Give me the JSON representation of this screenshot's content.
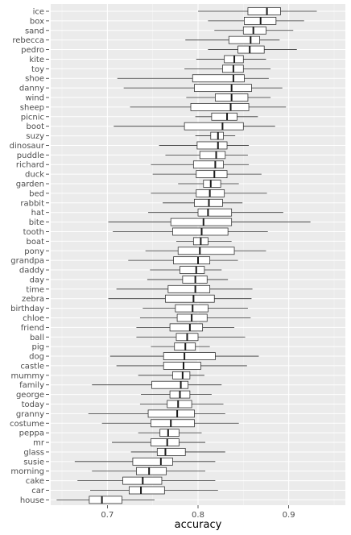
{
  "chart_data": {
    "type": "boxplot",
    "title": "",
    "xlabel": "accuracy",
    "ylabel": "",
    "xlim": [
      0.6375,
      0.9625
    ],
    "xticks": [
      0.7,
      0.8,
      0.9
    ],
    "xtick_labels": [
      "0.7",
      "0.8",
      "0.9"
    ],
    "grid": true,
    "categories": [
      "ice",
      "box",
      "sand",
      "rebecca",
      "pedro",
      "kite",
      "toy",
      "shoe",
      "danny",
      "wind",
      "sheep",
      "picnic",
      "boot",
      "suzy",
      "dinosaur",
      "puddle",
      "richard",
      "duck",
      "garden",
      "bed",
      "rabbit",
      "hat",
      "bite",
      "tooth",
      "boat",
      "pony",
      "grandpa",
      "daddy",
      "day",
      "time",
      "zebra",
      "birthday",
      "chloe",
      "friend",
      "ball",
      "pig",
      "dog",
      "castle",
      "mummy",
      "family",
      "george",
      "today",
      "granny",
      "costume",
      "peppa",
      "mr",
      "glass",
      "susie",
      "morning",
      "cake",
      "car",
      "house"
    ],
    "boxes": [
      {
        "min": 0.8,
        "q1": 0.855,
        "median": 0.876,
        "q3": 0.891,
        "max": 0.931
      },
      {
        "min": 0.811,
        "q1": 0.851,
        "median": 0.869,
        "q3": 0.886,
        "max": 0.917
      },
      {
        "min": 0.818,
        "q1": 0.85,
        "median": 0.861,
        "q3": 0.875,
        "max": 0.905
      },
      {
        "min": 0.786,
        "q1": 0.834,
        "median": 0.858,
        "q3": 0.868,
        "max": 0.89
      },
      {
        "min": 0.811,
        "q1": 0.844,
        "median": 0.857,
        "q3": 0.873,
        "max": 0.909
      },
      {
        "min": 0.798,
        "q1": 0.829,
        "median": 0.84,
        "q3": 0.85,
        "max": 0.875
      },
      {
        "min": 0.785,
        "q1": 0.827,
        "median": 0.839,
        "q3": 0.85,
        "max": 0.88
      },
      {
        "min": 0.711,
        "q1": 0.794,
        "median": 0.839,
        "q3": 0.851,
        "max": 0.878
      },
      {
        "min": 0.718,
        "q1": 0.796,
        "median": 0.837,
        "q3": 0.859,
        "max": 0.893
      },
      {
        "min": 0.787,
        "q1": 0.819,
        "median": 0.837,
        "q3": 0.855,
        "max": 0.88
      },
      {
        "min": 0.725,
        "q1": 0.792,
        "median": 0.836,
        "q3": 0.856,
        "max": 0.897
      },
      {
        "min": 0.797,
        "q1": 0.815,
        "median": 0.832,
        "q3": 0.843,
        "max": 0.866
      },
      {
        "min": 0.707,
        "q1": 0.785,
        "median": 0.827,
        "q3": 0.85,
        "max": 0.885
      },
      {
        "min": 0.797,
        "q1": 0.814,
        "median": 0.822,
        "q3": 0.828,
        "max": 0.841
      },
      {
        "min": 0.757,
        "q1": 0.799,
        "median": 0.822,
        "q3": 0.832,
        "max": 0.856
      },
      {
        "min": 0.764,
        "q1": 0.802,
        "median": 0.82,
        "q3": 0.83,
        "max": 0.855
      },
      {
        "min": 0.748,
        "q1": 0.795,
        "median": 0.819,
        "q3": 0.828,
        "max": 0.856
      },
      {
        "min": 0.75,
        "q1": 0.798,
        "median": 0.818,
        "q3": 0.832,
        "max": 0.87
      },
      {
        "min": 0.778,
        "q1": 0.806,
        "median": 0.814,
        "q3": 0.825,
        "max": 0.845
      },
      {
        "min": 0.748,
        "q1": 0.798,
        "median": 0.813,
        "q3": 0.829,
        "max": 0.876
      },
      {
        "min": 0.761,
        "q1": 0.796,
        "median": 0.812,
        "q3": 0.827,
        "max": 0.849
      },
      {
        "min": 0.745,
        "q1": 0.8,
        "median": 0.811,
        "q3": 0.837,
        "max": 0.894
      },
      {
        "min": 0.701,
        "q1": 0.77,
        "median": 0.806,
        "q3": 0.837,
        "max": 0.924
      },
      {
        "min": 0.706,
        "q1": 0.772,
        "median": 0.804,
        "q3": 0.833,
        "max": 0.877
      },
      {
        "min": 0.776,
        "q1": 0.795,
        "median": 0.803,
        "q3": 0.811,
        "max": 0.837
      },
      {
        "min": 0.742,
        "q1": 0.778,
        "median": 0.802,
        "q3": 0.84,
        "max": 0.875
      },
      {
        "min": 0.723,
        "q1": 0.773,
        "median": 0.8,
        "q3": 0.813,
        "max": 0.844
      },
      {
        "min": 0.747,
        "q1": 0.78,
        "median": 0.798,
        "q3": 0.807,
        "max": 0.826
      },
      {
        "min": 0.744,
        "q1": 0.783,
        "median": 0.797,
        "q3": 0.81,
        "max": 0.833
      },
      {
        "min": 0.71,
        "q1": 0.767,
        "median": 0.797,
        "q3": 0.813,
        "max": 0.86
      },
      {
        "min": 0.701,
        "q1": 0.764,
        "median": 0.795,
        "q3": 0.818,
        "max": 0.859
      },
      {
        "min": 0.739,
        "q1": 0.775,
        "median": 0.794,
        "q3": 0.811,
        "max": 0.855
      },
      {
        "min": 0.736,
        "q1": 0.777,
        "median": 0.793,
        "q3": 0.81,
        "max": 0.858
      },
      {
        "min": 0.732,
        "q1": 0.769,
        "median": 0.791,
        "q3": 0.805,
        "max": 0.84
      },
      {
        "min": 0.732,
        "q1": 0.776,
        "median": 0.788,
        "q3": 0.8,
        "max": 0.852
      },
      {
        "min": 0.748,
        "q1": 0.774,
        "median": 0.786,
        "q3": 0.797,
        "max": 0.813
      },
      {
        "min": 0.703,
        "q1": 0.762,
        "median": 0.785,
        "q3": 0.819,
        "max": 0.867
      },
      {
        "min": 0.71,
        "q1": 0.762,
        "median": 0.784,
        "q3": 0.803,
        "max": 0.854
      },
      {
        "min": 0.734,
        "q1": 0.772,
        "median": 0.783,
        "q3": 0.791,
        "max": 0.807
      },
      {
        "min": 0.683,
        "q1": 0.749,
        "median": 0.781,
        "q3": 0.789,
        "max": 0.826
      },
      {
        "min": 0.737,
        "q1": 0.769,
        "median": 0.78,
        "q3": 0.791,
        "max": 0.815
      },
      {
        "min": 0.736,
        "q1": 0.766,
        "median": 0.778,
        "q3": 0.793,
        "max": 0.828
      },
      {
        "min": 0.679,
        "q1": 0.745,
        "median": 0.777,
        "q3": 0.796,
        "max": 0.83
      },
      {
        "min": 0.694,
        "q1": 0.748,
        "median": 0.77,
        "q3": 0.796,
        "max": 0.845
      },
      {
        "min": 0.734,
        "q1": 0.758,
        "median": 0.767,
        "q3": 0.779,
        "max": 0.804
      },
      {
        "min": 0.705,
        "q1": 0.748,
        "median": 0.766,
        "q3": 0.779,
        "max": 0.808
      },
      {
        "min": 0.726,
        "q1": 0.755,
        "median": 0.764,
        "q3": 0.786,
        "max": 0.83
      },
      {
        "min": 0.664,
        "q1": 0.728,
        "median": 0.759,
        "q3": 0.772,
        "max": 0.819
      },
      {
        "min": 0.683,
        "q1": 0.732,
        "median": 0.746,
        "q3": 0.765,
        "max": 0.808
      },
      {
        "min": 0.667,
        "q1": 0.717,
        "median": 0.739,
        "q3": 0.76,
        "max": 0.819
      },
      {
        "min": 0.681,
        "q1": 0.724,
        "median": 0.737,
        "q3": 0.763,
        "max": 0.822
      },
      {
        "min": 0.644,
        "q1": 0.68,
        "median": 0.694,
        "q3": 0.716,
        "max": 0.752
      }
    ]
  }
}
